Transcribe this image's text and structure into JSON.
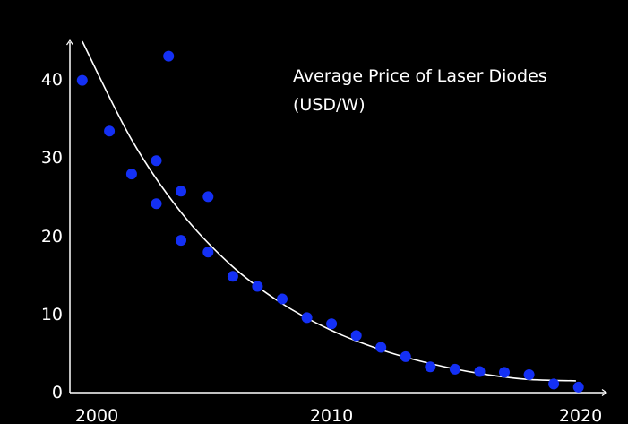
{
  "chart_data": {
    "type": "scatter",
    "title": "Average Price of Laser Diodes",
    "subtitle": "(USD/W)",
    "xlabel": "",
    "ylabel": "",
    "xlim": [
      1999.5,
      2021.2
    ],
    "ylim": [
      0,
      45
    ],
    "x_ticks": [
      2000,
      2010,
      2020
    ],
    "y_ticks": [
      0,
      10,
      20,
      30,
      40
    ],
    "x_tick_labels": [
      "2000",
      "2010",
      "2020"
    ],
    "y_tick_labels": [
      "0",
      "10",
      "20",
      "30",
      "40"
    ],
    "grid": false,
    "legend": "none",
    "colors": {
      "background": "#000000",
      "points": "#1430f5",
      "trend": "#ffffff",
      "axes": "#ffffff",
      "text": "#ffffff"
    },
    "points": [
      {
        "x": 2000.0,
        "y": 40.0
      },
      {
        "x": 2001.1,
        "y": 33.5
      },
      {
        "x": 2002.0,
        "y": 28.0
      },
      {
        "x": 2003.0,
        "y": 29.7
      },
      {
        "x": 2003.0,
        "y": 24.2
      },
      {
        "x": 2003.5,
        "y": 43.1
      },
      {
        "x": 2004.0,
        "y": 25.8
      },
      {
        "x": 2004.0,
        "y": 19.5
      },
      {
        "x": 2005.1,
        "y": 25.1
      },
      {
        "x": 2005.1,
        "y": 18.0
      },
      {
        "x": 2006.1,
        "y": 14.9
      },
      {
        "x": 2007.1,
        "y": 13.6
      },
      {
        "x": 2008.1,
        "y": 12.0
      },
      {
        "x": 2009.1,
        "y": 9.6
      },
      {
        "x": 2010.1,
        "y": 8.8
      },
      {
        "x": 2011.1,
        "y": 7.3
      },
      {
        "x": 2012.1,
        "y": 5.8
      },
      {
        "x": 2013.1,
        "y": 4.6
      },
      {
        "x": 2014.1,
        "y": 3.3
      },
      {
        "x": 2015.1,
        "y": 3.0
      },
      {
        "x": 2016.1,
        "y": 2.7
      },
      {
        "x": 2017.1,
        "y": 2.6
      },
      {
        "x": 2018.1,
        "y": 2.3
      },
      {
        "x": 2019.1,
        "y": 1.1
      },
      {
        "x": 2020.1,
        "y": 0.7
      }
    ],
    "trend": [
      {
        "x": 2000.0,
        "y": 45.0
      },
      {
        "x": 2002.0,
        "y": 32.4
      },
      {
        "x": 2004.0,
        "y": 23.1
      },
      {
        "x": 2006.0,
        "y": 16.4
      },
      {
        "x": 2008.0,
        "y": 11.6
      },
      {
        "x": 2010.0,
        "y": 8.1
      },
      {
        "x": 2012.0,
        "y": 5.6
      },
      {
        "x": 2014.0,
        "y": 3.8
      },
      {
        "x": 2016.0,
        "y": 2.5
      },
      {
        "x": 2018.0,
        "y": 1.7
      },
      {
        "x": 2020.0,
        "y": 1.5
      }
    ]
  }
}
